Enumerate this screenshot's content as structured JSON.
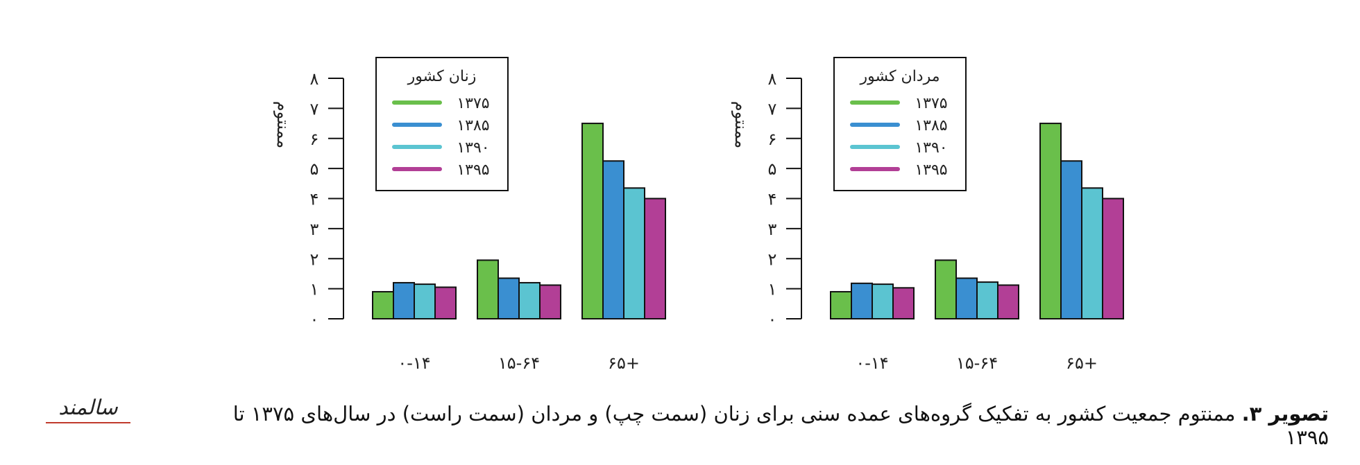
{
  "chart_data": [
    {
      "type": "bar",
      "legend_title": "زنان کشور",
      "ylabel": "ممنتوم",
      "categories": [
        "۰-۱۴",
        "۱۵-۶۴",
        "۶۵+"
      ],
      "series": [
        {
          "name": "۱۳۷۵",
          "color": "#6abf4b",
          "values": [
            0.9,
            1.95,
            6.5
          ]
        },
        {
          "name": "۱۳۸۵",
          "color": "#3a8fd1",
          "values": [
            1.2,
            1.35,
            5.25
          ]
        },
        {
          "name": "۱۳۹۰",
          "color": "#5bc4d1",
          "values": [
            1.15,
            1.2,
            4.35
          ]
        },
        {
          "name": "۱۳۹۵",
          "color": "#b23f96",
          "values": [
            1.05,
            1.12,
            4.0
          ]
        }
      ],
      "ylim": [
        0,
        8
      ],
      "yticks": [
        "۰",
        "۱",
        "۲",
        "۳",
        "۴",
        "۵",
        "۶",
        "۷",
        "۸"
      ],
      "legend_position": "top-left",
      "grid": false
    },
    {
      "type": "bar",
      "legend_title": "مردان کشور",
      "ylabel": "ممنتوم",
      "categories": [
        "۰-۱۴",
        "۱۵-۶۴",
        "۶۵+"
      ],
      "series": [
        {
          "name": "۱۳۷۵",
          "color": "#6abf4b",
          "values": [
            0.9,
            1.95,
            6.5
          ]
        },
        {
          "name": "۱۳۸۵",
          "color": "#3a8fd1",
          "values": [
            1.18,
            1.35,
            5.25
          ]
        },
        {
          "name": "۱۳۹۰",
          "color": "#5bc4d1",
          "values": [
            1.15,
            1.22,
            4.35
          ]
        },
        {
          "name": "۱۳۹۵",
          "color": "#b23f96",
          "values": [
            1.03,
            1.12,
            4.0
          ]
        }
      ],
      "ylim": [
        0,
        8
      ],
      "yticks": [
        "۰",
        "۱",
        "۲",
        "۳",
        "۴",
        "۵",
        "۶",
        "۷",
        "۸"
      ],
      "legend_position": "top-left",
      "grid": false
    }
  ],
  "caption": {
    "label": "تصویر ۳.",
    "text": "ممنتوم جمعیت کشور به تفکیک گروه‌های عمده سنی برای زنان (سمت چپ) و مردان (سمت راست) در سال‌های ۱۳۷۵ تا ۱۳۹۵"
  },
  "logo": {
    "name": "salmand-logo",
    "text": "سالمند",
    "underline_color": "#c0392b"
  }
}
